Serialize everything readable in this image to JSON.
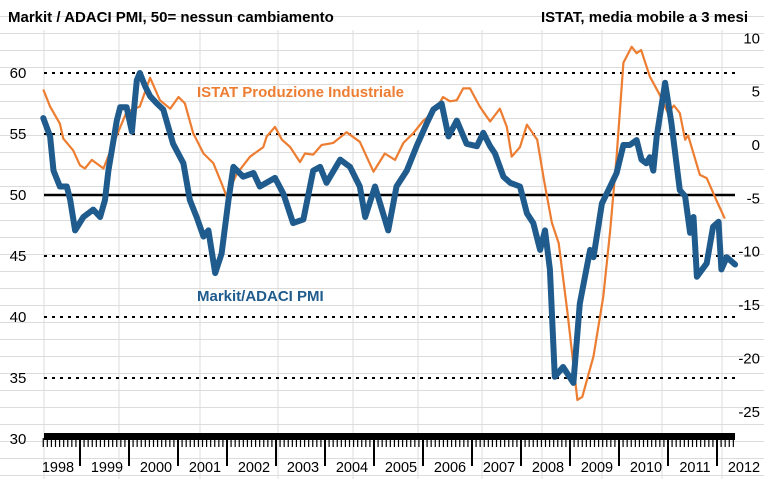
{
  "chart_data": {
    "type": "line",
    "title_left": "Markit / ADACI PMI, 50= nessun cambiamento",
    "title_right": "ISTAT, media mobile a 3 mesi",
    "x_range": [
      1998.25,
      2012.4
    ],
    "x_tick_labels": [
      "1998",
      "1999",
      "2000",
      "2001",
      "2002",
      "2003",
      "2004",
      "2005",
      "2006",
      "2007",
      "2008",
      "2009",
      "2010",
      "2011",
      "2012"
    ],
    "y_left": {
      "range": [
        30,
        60
      ],
      "ticks": [
        "30",
        "35",
        "40",
        "45",
        "50",
        "55",
        "60"
      ],
      "dotted_lines": [
        35,
        40,
        45,
        55,
        60
      ],
      "solid_line": 50
    },
    "y_right": {
      "range": [
        -25,
        10
      ],
      "ticks": [
        "-25",
        "-20",
        "-15",
        "-10",
        "-5",
        "0",
        "5",
        "10"
      ]
    },
    "colors": {
      "pmi": "#1f5b8c",
      "istat": "#ed7d31",
      "axis": "#000000"
    },
    "series": [
      {
        "name": "Markit/ADACI PMI",
        "axis": "left",
        "points": [
          [
            1998.25,
            56.3
          ],
          [
            1998.39,
            54.8
          ],
          [
            1998.46,
            52.0
          ],
          [
            1998.59,
            50.7
          ],
          [
            1998.73,
            50.7
          ],
          [
            1998.8,
            49.6
          ],
          [
            1998.9,
            47.1
          ],
          [
            1999.07,
            48.2
          ],
          [
            1999.27,
            48.8
          ],
          [
            1999.41,
            48.2
          ],
          [
            1999.51,
            49.6
          ],
          [
            1999.58,
            52.0
          ],
          [
            1999.75,
            56.1
          ],
          [
            1999.82,
            57.2
          ],
          [
            1999.95,
            57.2
          ],
          [
            2000.06,
            55.2
          ],
          [
            2000.16,
            59.4
          ],
          [
            2000.22,
            60.0
          ],
          [
            2000.33,
            58.9
          ],
          [
            2000.43,
            58.1
          ],
          [
            2000.57,
            57.5
          ],
          [
            2000.7,
            57.0
          ],
          [
            2000.9,
            54.2
          ],
          [
            2001.11,
            52.6
          ],
          [
            2001.24,
            49.6
          ],
          [
            2001.38,
            48.2
          ],
          [
            2001.52,
            46.6
          ],
          [
            2001.62,
            47.1
          ],
          [
            2001.76,
            43.6
          ],
          [
            2001.89,
            45.2
          ],
          [
            2002.03,
            49.6
          ],
          [
            2002.13,
            52.3
          ],
          [
            2002.33,
            51.5
          ],
          [
            2002.54,
            51.8
          ],
          [
            2002.67,
            50.7
          ],
          [
            2002.98,
            51.4
          ],
          [
            2003.15,
            50.1
          ],
          [
            2003.35,
            47.7
          ],
          [
            2003.56,
            48.0
          ],
          [
            2003.76,
            52.0
          ],
          [
            2003.9,
            52.3
          ],
          [
            2004.03,
            51.0
          ],
          [
            2004.31,
            52.9
          ],
          [
            2004.51,
            52.3
          ],
          [
            2004.71,
            50.7
          ],
          [
            2004.82,
            48.2
          ],
          [
            2005.02,
            50.7
          ],
          [
            2005.29,
            47.1
          ],
          [
            2005.46,
            50.7
          ],
          [
            2005.67,
            52.0
          ],
          [
            2005.87,
            54.0
          ],
          [
            2006.08,
            55.9
          ],
          [
            2006.21,
            57.0
          ],
          [
            2006.38,
            57.5
          ],
          [
            2006.52,
            54.8
          ],
          [
            2006.69,
            56.1
          ],
          [
            2006.89,
            54.2
          ],
          [
            2007.1,
            54.0
          ],
          [
            2007.23,
            55.1
          ],
          [
            2007.37,
            54.0
          ],
          [
            2007.47,
            53.4
          ],
          [
            2007.64,
            51.5
          ],
          [
            2007.78,
            51.0
          ],
          [
            2007.98,
            50.7
          ],
          [
            2008.12,
            48.5
          ],
          [
            2008.25,
            47.7
          ],
          [
            2008.39,
            45.5
          ],
          [
            2008.49,
            47.1
          ],
          [
            2008.59,
            43.9
          ],
          [
            2008.69,
            35.1
          ],
          [
            2008.86,
            35.9
          ],
          [
            2009.07,
            34.6
          ],
          [
            2009.2,
            41.1
          ],
          [
            2009.41,
            45.5
          ],
          [
            2009.48,
            44.9
          ],
          [
            2009.65,
            49.3
          ],
          [
            2009.82,
            50.7
          ],
          [
            2009.95,
            51.8
          ],
          [
            2010.09,
            54.1
          ],
          [
            2010.22,
            54.1
          ],
          [
            2010.36,
            54.5
          ],
          [
            2010.46,
            52.9
          ],
          [
            2010.56,
            52.6
          ],
          [
            2010.63,
            53.1
          ],
          [
            2010.7,
            52.0
          ],
          [
            2010.77,
            54.8
          ],
          [
            2010.94,
            59.2
          ],
          [
            2011.07,
            55.9
          ],
          [
            2011.24,
            50.4
          ],
          [
            2011.35,
            49.9
          ],
          [
            2011.45,
            46.9
          ],
          [
            2011.52,
            48.2
          ],
          [
            2011.59,
            43.3
          ],
          [
            2011.79,
            44.4
          ],
          [
            2011.92,
            47.4
          ],
          [
            2012.03,
            47.8
          ],
          [
            2012.09,
            43.9
          ],
          [
            2012.2,
            44.9
          ],
          [
            2012.37,
            44.3
          ]
        ]
      },
      {
        "name": "ISTAT Produzione Industriale",
        "axis": "right",
        "points": [
          [
            1998.25,
            5.2
          ],
          [
            1998.39,
            3.6
          ],
          [
            1998.59,
            2.0
          ],
          [
            1998.66,
            0.6
          ],
          [
            1998.86,
            -0.5
          ],
          [
            1999.0,
            -1.9
          ],
          [
            1999.1,
            -2.2
          ],
          [
            1999.24,
            -1.4
          ],
          [
            1999.48,
            -2.2
          ],
          [
            1999.65,
            -0.2
          ],
          [
            1999.95,
            3.1
          ],
          [
            2000.22,
            3.6
          ],
          [
            2000.43,
            6.3
          ],
          [
            2000.63,
            4.2
          ],
          [
            2000.84,
            3.4
          ],
          [
            2001.01,
            4.5
          ],
          [
            2001.14,
            3.9
          ],
          [
            2001.31,
            1.1
          ],
          [
            2001.52,
            -0.8
          ],
          [
            2001.72,
            -1.7
          ],
          [
            2001.89,
            -3.6
          ],
          [
            2001.99,
            -4.8
          ],
          [
            2002.2,
            -2.7
          ],
          [
            2002.47,
            -1.1
          ],
          [
            2002.74,
            -0.2
          ],
          [
            2002.81,
            0.8
          ],
          [
            2002.98,
            1.7
          ],
          [
            2003.12,
            0.5
          ],
          [
            2003.29,
            -0.2
          ],
          [
            2003.49,
            -1.6
          ],
          [
            2003.59,
            -0.8
          ],
          [
            2003.76,
            -0.9
          ],
          [
            2003.93,
            0
          ],
          [
            2004.17,
            0.2
          ],
          [
            2004.44,
            1.2
          ],
          [
            2004.71,
            0.3
          ],
          [
            2004.99,
            -2.5
          ],
          [
            2005.22,
            -0.8
          ],
          [
            2005.43,
            -1.4
          ],
          [
            2005.6,
            0.2
          ],
          [
            2005.8,
            1.1
          ],
          [
            2006.01,
            2.3
          ],
          [
            2006.21,
            3.0
          ],
          [
            2006.41,
            4.5
          ],
          [
            2006.55,
            4.1
          ],
          [
            2006.69,
            4.2
          ],
          [
            2006.82,
            5.3
          ],
          [
            2006.96,
            5.3
          ],
          [
            2007.16,
            3.6
          ],
          [
            2007.37,
            2.2
          ],
          [
            2007.57,
            3.4
          ],
          [
            2007.71,
            1.7
          ],
          [
            2007.81,
            -1.1
          ],
          [
            2007.98,
            -0.2
          ],
          [
            2008.12,
            1.9
          ],
          [
            2008.33,
            0.5
          ],
          [
            2008.47,
            -3.3
          ],
          [
            2008.63,
            -7.3
          ],
          [
            2008.77,
            -9.2
          ],
          [
            2008.95,
            -15.8
          ],
          [
            2009.15,
            -23.9
          ],
          [
            2009.25,
            -23.6
          ],
          [
            2009.48,
            -19.8
          ],
          [
            2009.68,
            -14.2
          ],
          [
            2009.82,
            -8.0
          ],
          [
            2009.95,
            -1.1
          ],
          [
            2010.09,
            7.7
          ],
          [
            2010.26,
            9.2
          ],
          [
            2010.36,
            8.6
          ],
          [
            2010.45,
            8.9
          ],
          [
            2010.63,
            6.4
          ],
          [
            2010.82,
            4.8
          ],
          [
            2011.0,
            3.0
          ],
          [
            2011.12,
            3.7
          ],
          [
            2011.24,
            3.0
          ],
          [
            2011.35,
            0.5
          ],
          [
            2011.41,
            0.9
          ],
          [
            2011.65,
            -2.8
          ],
          [
            2011.79,
            -3.1
          ],
          [
            2011.99,
            -5.2
          ],
          [
            2012.16,
            -6.9
          ]
        ]
      }
    ],
    "annotations": {
      "istat_label": "ISTAT Produzione Industriale",
      "pmi_label": "Markit/ADACI PMI"
    }
  }
}
